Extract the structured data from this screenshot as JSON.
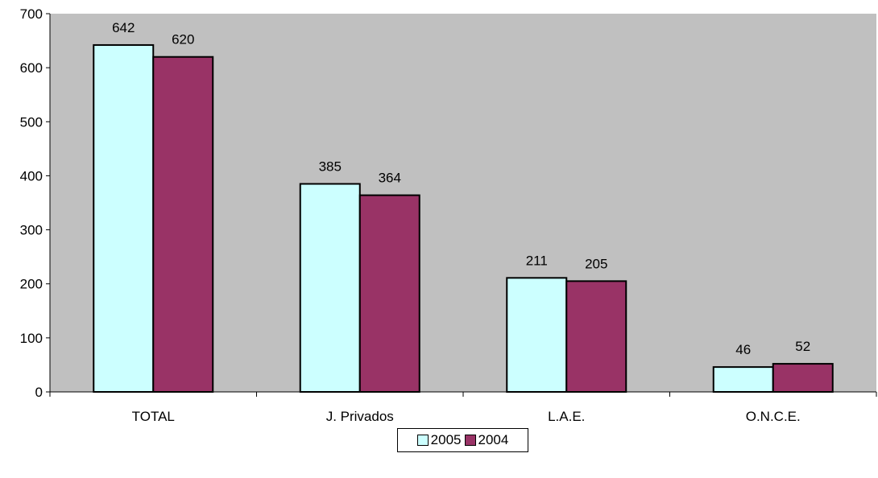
{
  "chart_data": {
    "type": "bar",
    "categories": [
      "TOTAL",
      "J. Privados",
      "L.A.E.",
      "O.N.C.E."
    ],
    "series": [
      {
        "name": "2005",
        "values": [
          642,
          385,
          211,
          46
        ],
        "color": "#CCFFFF"
      },
      {
        "name": "2004",
        "values": [
          620,
          364,
          205,
          52
        ],
        "color": "#993366"
      }
    ],
    "ylim": [
      0,
      700
    ],
    "yticks": [
      0,
      100,
      200,
      300,
      400,
      500,
      600,
      700
    ],
    "plot_background": "#C0C0C0",
    "grid": false,
    "legend_position": "bottom",
    "title": "",
    "xlabel": "",
    "ylabel": ""
  }
}
